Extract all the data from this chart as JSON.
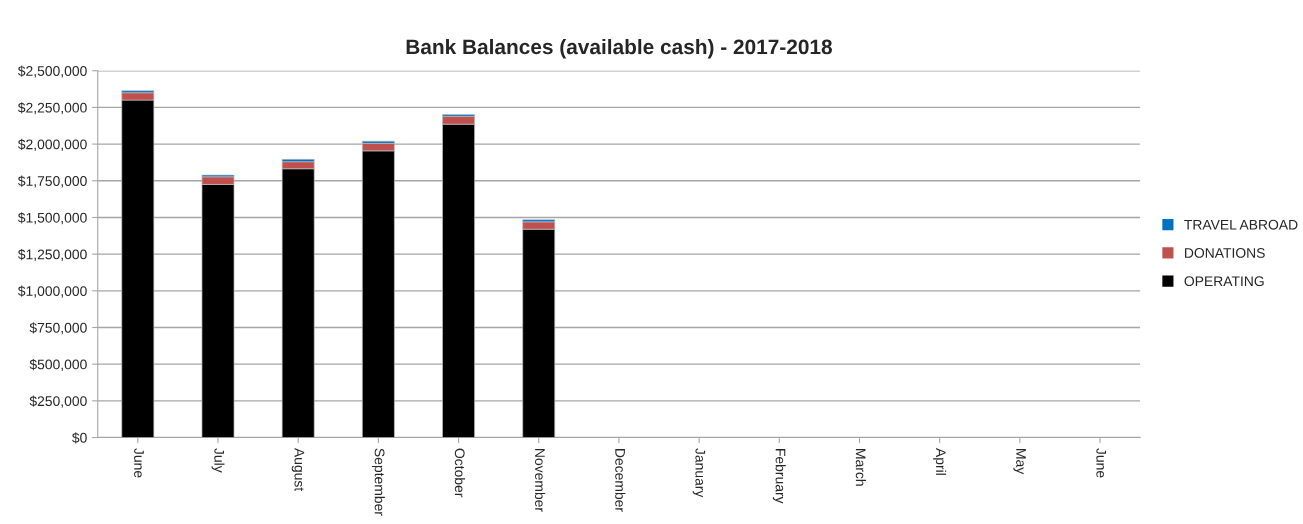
{
  "chart_data": {
    "type": "bar",
    "title": "Bank Balances (available cash) - 2017-2018",
    "stacked": true,
    "categories": [
      "June",
      "July",
      "August",
      "September",
      "October",
      "November",
      "December",
      "January",
      "February",
      "March",
      "April",
      "May",
      "June"
    ],
    "series": [
      {
        "name": "OPERATING",
        "color": "#000000",
        "values": [
          2300000,
          1725000,
          1832000,
          1954000,
          2136000,
          1420000,
          null,
          null,
          null,
          null,
          null,
          null,
          null
        ]
      },
      {
        "name": "DONATIONS",
        "color": "#c0504d",
        "values": [
          50000,
          52000,
          48000,
          51000,
          54000,
          50000,
          null,
          null,
          null,
          null,
          null,
          null,
          null
        ]
      },
      {
        "name": "TRAVEL ABROAD",
        "color": "#0070c0",
        "values": [
          14000,
          12000,
          16000,
          15000,
          12000,
          15000,
          null,
          null,
          null,
          null,
          null,
          null,
          null
        ]
      }
    ],
    "ylim": [
      0,
      2500000
    ],
    "yticks": [
      {
        "value": 0,
        "label": "$0"
      },
      {
        "value": 250000,
        "label": "$250,000"
      },
      {
        "value": 500000,
        "label": "$500,000"
      },
      {
        "value": 750000,
        "label": "$750,000"
      },
      {
        "value": 1000000,
        "label": "$1,000,000"
      },
      {
        "value": 1250000,
        "label": "$1,250,000"
      },
      {
        "value": 1500000,
        "label": "$1,500,000"
      },
      {
        "value": 1750000,
        "label": "$1,750,000"
      },
      {
        "value": 2000000,
        "label": "$2,000,000"
      },
      {
        "value": 2250000,
        "label": "$2,250,000"
      },
      {
        "value": 2500000,
        "label": "$2,500,000"
      }
    ],
    "grid": "y",
    "legend": "right"
  }
}
